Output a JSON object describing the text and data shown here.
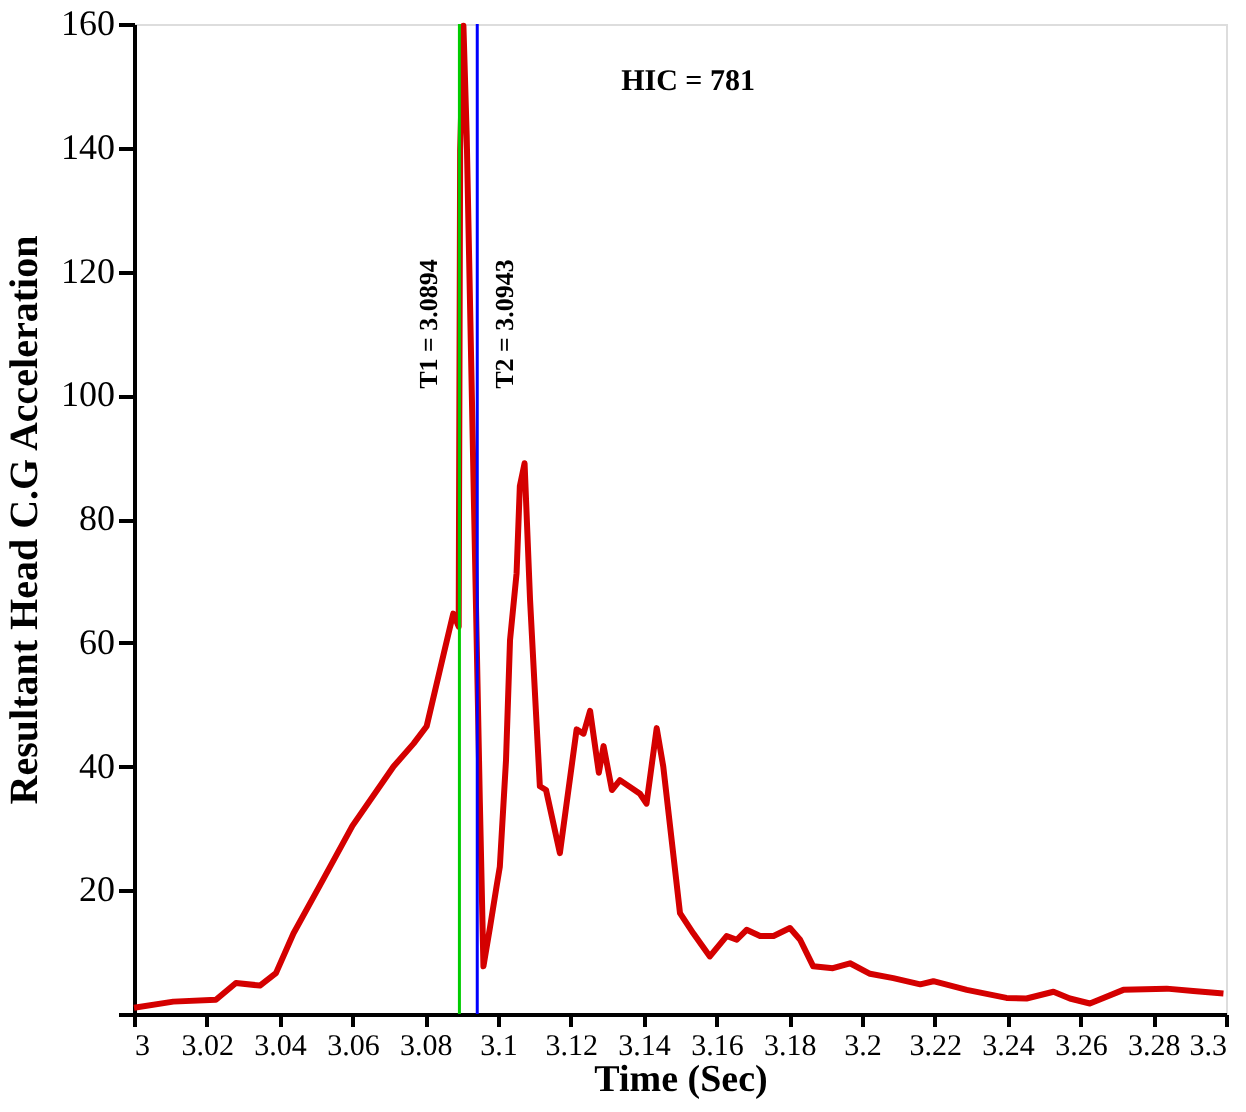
{
  "chart_data": {
    "type": "line",
    "xlabel": "Time (Sec)",
    "ylabel": "Resultant Head C.G Acceleration",
    "x": [
      3.0,
      3.0108,
      3.0225,
      3.028,
      3.0346,
      3.039,
      3.0438,
      3.051,
      3.06,
      3.0713,
      3.0768,
      3.0804,
      3.085,
      3.0877,
      3.0892,
      3.0896,
      3.0905,
      3.0914,
      3.0932,
      3.095,
      3.096,
      3.0978,
      3.0996,
      3.1005,
      3.1022,
      3.1033,
      3.1051,
      3.106,
      3.1073,
      3.1088,
      3.1115,
      3.1132,
      3.117,
      3.1216,
      3.1235,
      3.1253,
      3.1277,
      3.129,
      3.1313,
      3.1335,
      3.139,
      3.1408,
      3.1436,
      3.1454,
      3.15,
      3.1537,
      3.1582,
      3.1628,
      3.1656,
      3.1683,
      3.172,
      3.1757,
      3.1802,
      3.183,
      3.1866,
      3.192,
      3.1967,
      3.2022,
      3.2086,
      3.216,
      3.2196,
      3.2288,
      3.2397,
      3.2452,
      3.2526,
      3.2571,
      3.2626,
      3.2718,
      3.2837,
      3.291,
      3.2993
    ],
    "series": [
      {
        "color": "#d40000",
        "values": [
          1,
          2,
          2.3,
          5,
          4.6,
          6.6,
          13,
          20.7,
          30.4,
          40,
          43.7,
          46.5,
          58,
          64.7,
          62.6,
          139.6,
          159.7,
          142,
          88.5,
          34.6,
          7.7,
          14,
          20.6,
          23.8,
          41,
          60.4,
          71.2,
          85.3,
          89,
          67,
          36.8,
          36.2,
          26,
          46,
          45.3,
          49,
          39,
          43.3,
          36.2,
          37.8,
          35.6,
          34,
          46.2,
          40,
          16.3,
          13,
          9.3,
          12.6,
          12,
          13.6,
          12.6,
          12.6,
          13.9,
          12,
          7.7,
          7.4,
          8.2,
          6.5,
          5.8,
          4.8,
          5.3,
          3.9,
          2.6,
          2.5,
          3.6,
          2.5,
          1.7,
          3.9,
          4.1,
          3.7,
          3.3
        ]
      }
    ],
    "xlim": [
      3.0,
      3.3
    ],
    "xticks": [
      3,
      3.02,
      3.04,
      3.06,
      3.08,
      3.1,
      3.12,
      3.14,
      3.16,
      3.18,
      3.2,
      3.22,
      3.24,
      3.26,
      3.28,
      3.3
    ],
    "ylim": [
      0,
      160
    ],
    "yticks": [
      {
        "value": 0,
        "label": null
      },
      20,
      40,
      60,
      80,
      100,
      120,
      140,
      160
    ],
    "ref_lines": [
      {
        "axis": "x",
        "value": 3.0894,
        "label": "T1 = 3.0894",
        "color": "#00cc00"
      },
      {
        "axis": "x",
        "value": 3.0943,
        "label": "T2 = 3.0943",
        "color": "#0000ff"
      }
    ],
    "annotations": [
      "HIC = 781"
    ],
    "grid": false,
    "marker": "none",
    "line_style": "solid"
  }
}
